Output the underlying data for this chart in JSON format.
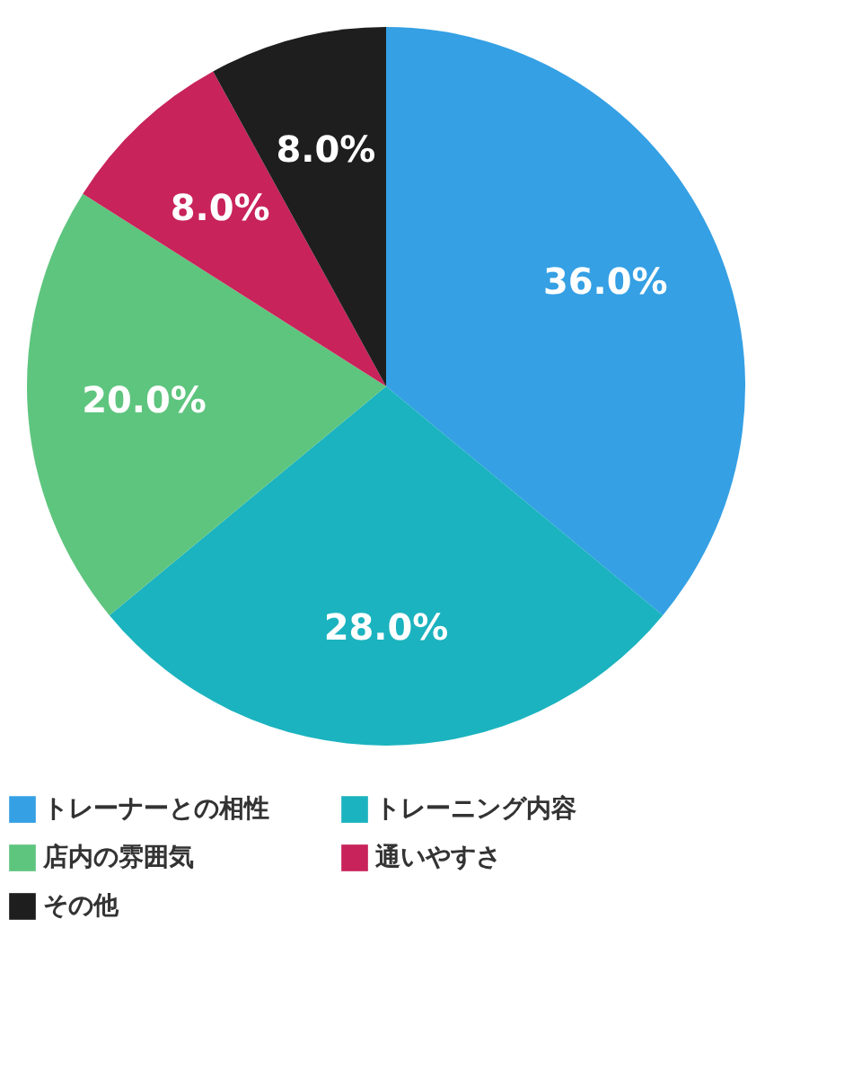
{
  "chart_data": {
    "type": "pie",
    "categories": [
      "トレーナーとの相性",
      "トレーニング内容",
      "店内の雰囲気",
      "通いやすさ",
      "その他"
    ],
    "values": [
      36.0,
      28.0,
      20.0,
      8.0,
      8.0
    ],
    "colors": [
      "#35a0e4",
      "#1bb3bf",
      "#5ec57e",
      "#c8235a",
      "#1e1e1e"
    ],
    "value_labels": [
      "36.0%",
      "28.0%",
      "20.0%",
      "8.0%",
      "8.0%"
    ],
    "legend": "bottom"
  }
}
